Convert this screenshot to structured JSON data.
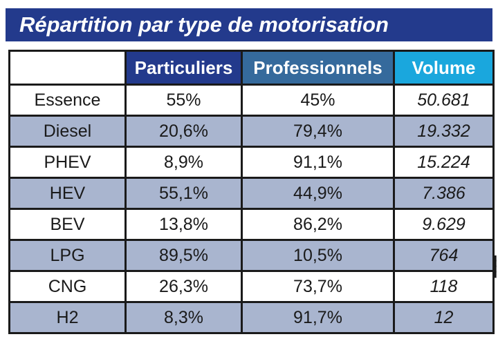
{
  "title": "Répartition par type de motorisation",
  "colors": {
    "title_bg": "#233a8c",
    "header_particuliers": "#233a8c",
    "header_professionnels": "#356a9c",
    "header_volume": "#1aa7dd",
    "row_alt": "#a9b5cf"
  },
  "table": {
    "headers": [
      "",
      "Particuliers",
      "Professionnels",
      "Volume"
    ],
    "rows": [
      {
        "type": "Essence",
        "particuliers": "55%",
        "professionnels": "45%",
        "volume": "50.681"
      },
      {
        "type": "Diesel",
        "particuliers": "20,6%",
        "professionnels": "79,4%",
        "volume": "19.332"
      },
      {
        "type": "PHEV",
        "particuliers": "8,9%",
        "professionnels": "91,1%",
        "volume": "15.224"
      },
      {
        "type": "HEV",
        "particuliers": "55,1%",
        "professionnels": "44,9%",
        "volume": "7.386"
      },
      {
        "type": "BEV",
        "particuliers": "13,8%",
        "professionnels": "86,2%",
        "volume": "9.629"
      },
      {
        "type": "LPG",
        "particuliers": "89,5%",
        "professionnels": "10,5%",
        "volume": "764"
      },
      {
        "type": "CNG",
        "particuliers": "26,3%",
        "professionnels": "73,7%",
        "volume": "118"
      },
      {
        "type": "H2",
        "particuliers": "8,3%",
        "professionnels": "91,7%",
        "volume": "12"
      }
    ]
  }
}
